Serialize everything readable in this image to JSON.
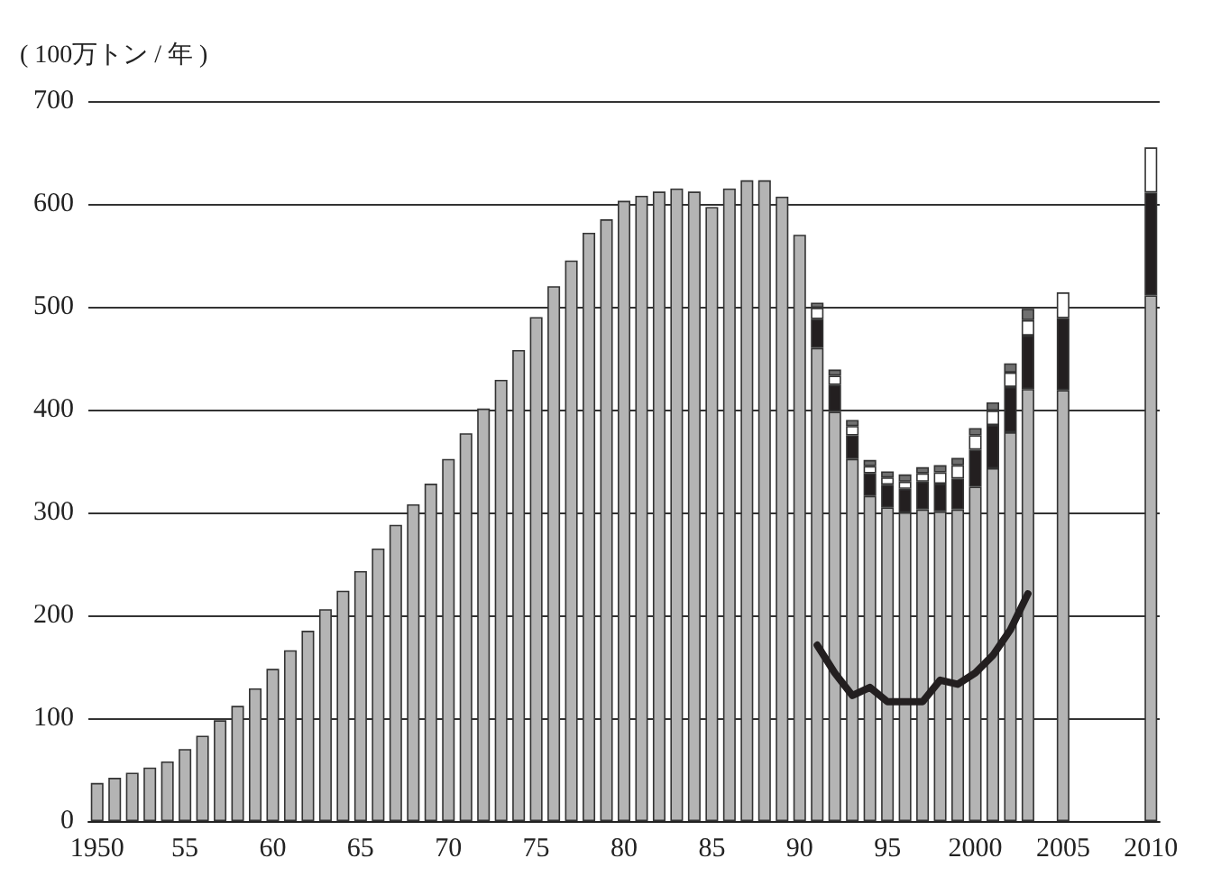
{
  "chart_data": {
    "type": "bar",
    "ylabel": "( 100万トン / 年 )",
    "categories": [
      "1950",
      null,
      null,
      null,
      null,
      "55",
      null,
      null,
      null,
      null,
      "60",
      null,
      null,
      null,
      null,
      "65",
      null,
      null,
      null,
      null,
      "70",
      null,
      null,
      null,
      null,
      "75",
      null,
      null,
      null,
      null,
      "80",
      null,
      null,
      null,
      null,
      "85",
      null,
      null,
      null,
      null,
      "90",
      null,
      null,
      null,
      null,
      "95",
      null,
      null,
      null,
      null,
      "2000",
      null,
      null,
      null,
      null,
      "2005",
      null,
      null,
      null,
      null,
      "2010"
    ],
    "stacked": true,
    "series": [
      {
        "color": "#b4b4b4",
        "values": [
          37,
          42,
          47,
          52,
          58,
          70,
          83,
          98,
          112,
          129,
          148,
          166,
          185,
          206,
          224,
          243,
          265,
          288,
          308,
          328,
          352,
          377,
          401,
          429,
          458,
          490,
          520,
          545,
          572,
          585,
          603,
          608,
          612,
          615,
          612,
          597,
          615,
          623,
          623,
          607,
          570,
          460,
          398,
          352,
          316,
          305,
          300,
          303,
          301,
          303,
          325,
          343,
          378,
          420,
          null,
          419,
          null,
          null,
          null,
          null,
          511
        ]
      },
      {
        "color": "#231f20",
        "values": [
          null,
          null,
          null,
          null,
          null,
          null,
          null,
          null,
          null,
          null,
          null,
          null,
          null,
          null,
          null,
          null,
          null,
          null,
          null,
          null,
          null,
          null,
          null,
          null,
          null,
          null,
          null,
          null,
          null,
          null,
          null,
          null,
          null,
          null,
          null,
          null,
          null,
          null,
          null,
          null,
          null,
          28,
          26,
          23,
          22,
          22,
          23,
          27,
          27,
          30,
          36,
          42,
          44,
          52,
          null,
          70,
          null,
          null,
          null,
          null,
          100
        ]
      },
      {
        "color": "#ffffff",
        "values": [
          null,
          null,
          null,
          null,
          null,
          null,
          null,
          null,
          null,
          null,
          null,
          null,
          null,
          null,
          null,
          null,
          null,
          null,
          null,
          null,
          null,
          null,
          null,
          null,
          null,
          null,
          null,
          null,
          null,
          null,
          null,
          null,
          null,
          null,
          null,
          null,
          null,
          null,
          null,
          null,
          null,
          11,
          9,
          9,
          7,
          7,
          7,
          8,
          11,
          13,
          14,
          14,
          14,
          15,
          null,
          25,
          null,
          null,
          null,
          null,
          44
        ]
      },
      {
        "color": "#707070",
        "values": [
          null,
          null,
          null,
          null,
          null,
          null,
          null,
          null,
          null,
          null,
          null,
          null,
          null,
          null,
          null,
          null,
          null,
          null,
          null,
          null,
          null,
          null,
          null,
          null,
          null,
          null,
          null,
          null,
          null,
          null,
          null,
          null,
          null,
          null,
          null,
          null,
          null,
          null,
          null,
          null,
          null,
          5,
          6,
          6,
          6,
          6,
          7,
          6,
          7,
          7,
          7,
          8,
          9,
          11,
          null,
          null,
          null,
          null,
          null,
          null,
          null
        ]
      },
      {
        "type": "line",
        "color": "#231f20",
        "values": [
          null,
          null,
          null,
          null,
          null,
          null,
          null,
          null,
          null,
          null,
          null,
          null,
          null,
          null,
          null,
          null,
          null,
          null,
          null,
          null,
          null,
          null,
          null,
          null,
          null,
          null,
          null,
          null,
          null,
          null,
          null,
          null,
          null,
          null,
          null,
          null,
          null,
          null,
          null,
          null,
          null,
          171,
          144,
          122,
          130,
          116,
          116,
          116,
          137,
          133,
          144,
          161,
          186,
          221,
          null,
          null,
          null,
          null,
          null,
          null,
          null
        ]
      }
    ],
    "ylim": [
      0,
      700
    ],
    "yticks": [
      0,
      100,
      200,
      300,
      400,
      500,
      600,
      700
    ],
    "grid": "y",
    "marker": "none"
  }
}
